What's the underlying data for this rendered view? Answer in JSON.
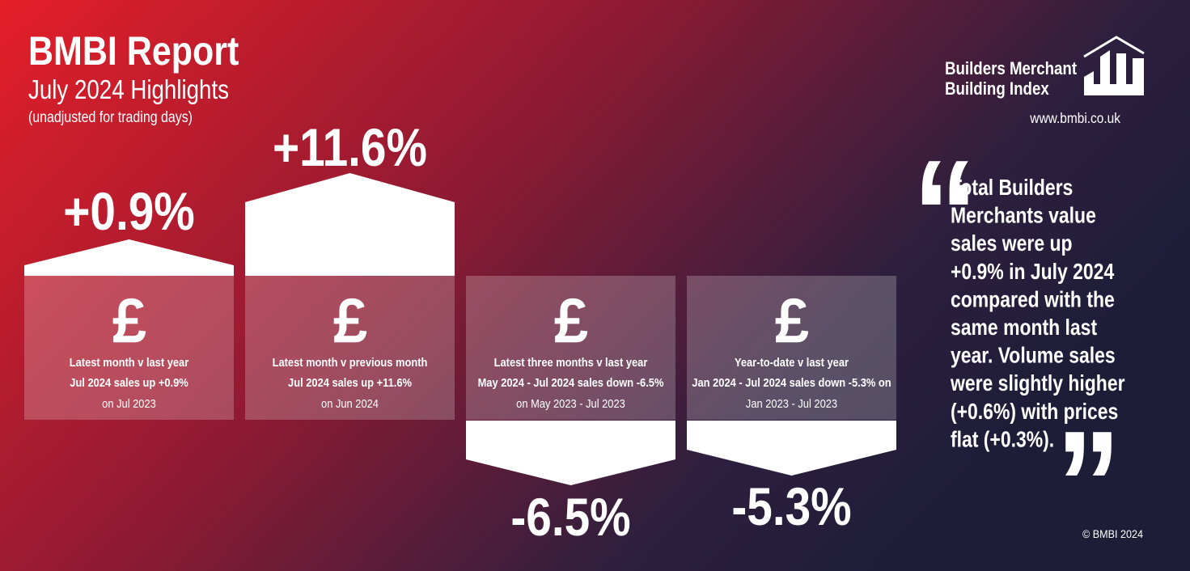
{
  "header": {
    "title": "BMBI Report",
    "subtitle": "July 2024 Highlights",
    "note": "(unadjusted for trading days)"
  },
  "logo": {
    "line1": "Builders Merchant",
    "line2": "Building Index",
    "url": "www.bmbi.co.uk"
  },
  "cards": [
    {
      "value": "+0.9%",
      "icon": "£",
      "label": "Latest month v last year",
      "detail": "Jul 2024 sales up +0.9%",
      "basis": "on Jul 2023"
    },
    {
      "value": "+11.6%",
      "icon": "£",
      "label": "Latest month v previous month",
      "detail": "Jul 2024 sales up +11.6%",
      "basis": "on Jun 2024"
    },
    {
      "value": "-6.5%",
      "icon": "£",
      "label": "Latest three months v last year",
      "detail": "May 2024 - Jul 2024 sales down -6.5%",
      "basis": "on May 2023 - Jul 2023"
    },
    {
      "value": "-5.3%",
      "icon": "£",
      "label": "Year-to-date v last year",
      "detail": "Jan 2024 - Jul 2024 sales down -5.3% on",
      "basis": "Jan 2023 - Jul 2023"
    }
  ],
  "quote": {
    "open_mark": "“",
    "close_mark": "”",
    "lines": [
      "Total Builders",
      "Merchants value",
      "sales were up",
      "+0.9% in July 2024",
      "compared with the",
      "same month last",
      "year. Volume sales",
      "were slightly higher",
      "(+0.6%) with prices",
      "flat (+0.3%)."
    ]
  },
  "copyright": "© BMBI 2024"
}
